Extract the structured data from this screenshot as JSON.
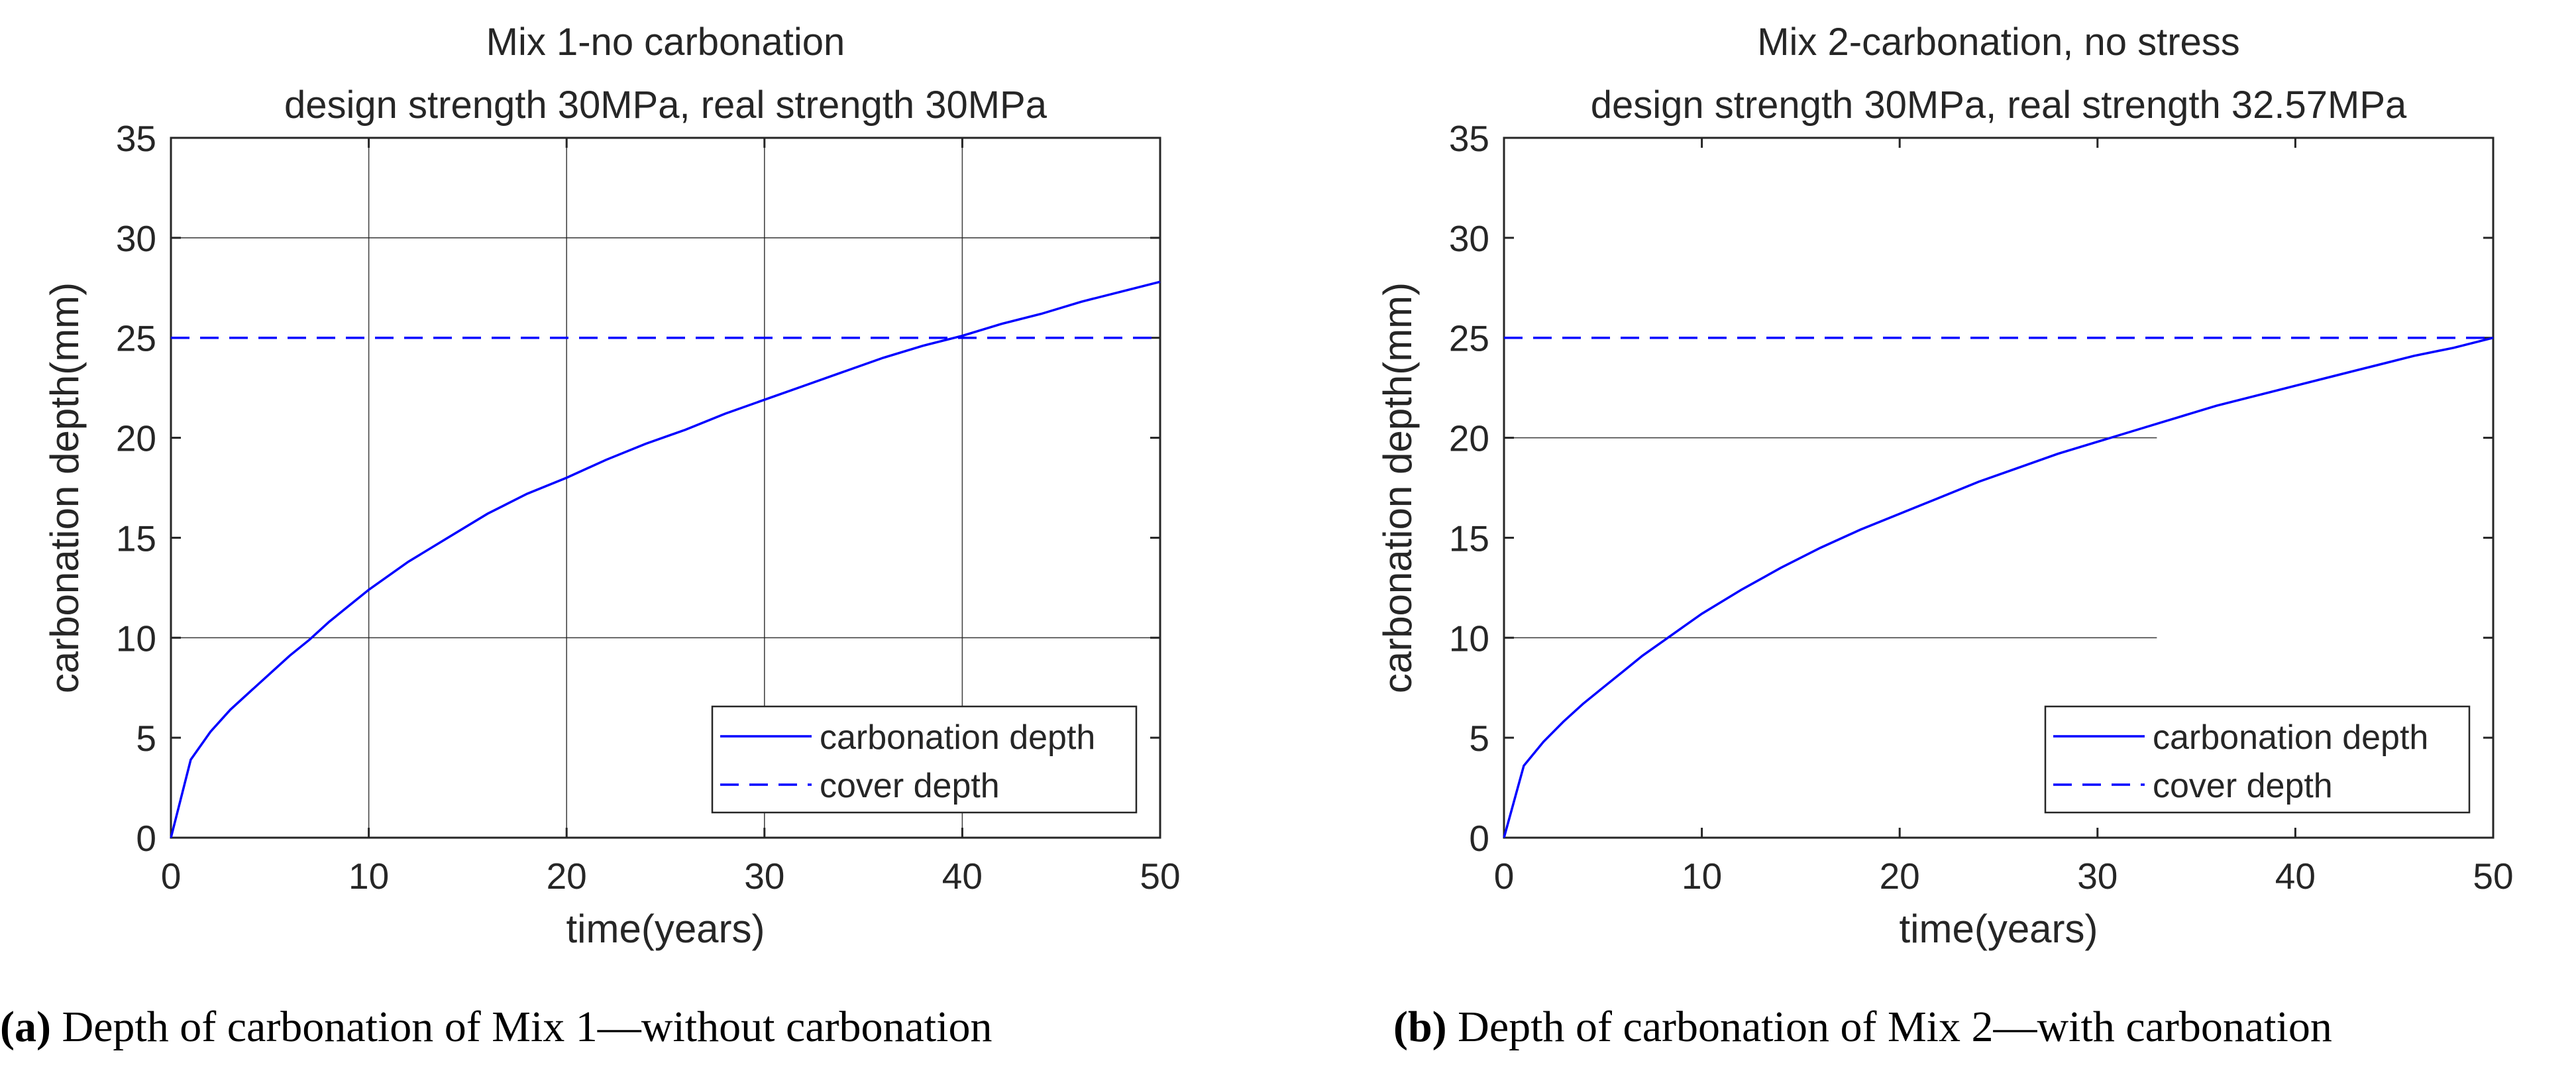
{
  "colors": {
    "series": "#0000ff",
    "axis": "#262626",
    "grid": "#262626",
    "background": "#ffffff"
  },
  "chart_data": [
    {
      "type": "line",
      "title": [
        "Mix 1-no carbonation",
        "design strength 30MPa, real strength 30MPa"
      ],
      "xlabel": "time(years)",
      "ylabel": "carbonation depth(mm)",
      "xlim": [
        0,
        50
      ],
      "ylim": [
        0,
        35
      ],
      "xticks": [
        0,
        10,
        20,
        30,
        40,
        50
      ],
      "yticks": [
        0,
        5,
        10,
        15,
        20,
        25,
        30,
        35
      ],
      "grid": "on",
      "legend_position": "bottom-right",
      "series": [
        {
          "name": "carbonation depth",
          "style": "solid",
          "x": [
            0,
            1,
            2,
            3,
            4,
            5,
            6,
            7,
            8,
            9,
            10,
            12,
            14,
            16,
            18,
            20,
            22,
            24,
            26,
            28,
            30,
            32,
            34,
            36,
            38,
            40,
            42,
            44,
            46,
            48,
            50
          ],
          "y": [
            0,
            3.9,
            5.3,
            6.4,
            7.3,
            8.2,
            9.1,
            9.9,
            10.8,
            11.6,
            12.4,
            13.8,
            15.0,
            16.2,
            17.2,
            18.0,
            18.9,
            19.7,
            20.4,
            21.2,
            21.9,
            22.6,
            23.3,
            24.0,
            24.6,
            25.1,
            25.7,
            26.2,
            26.8,
            27.3,
            27.8
          ]
        },
        {
          "name": "cover depth",
          "style": "dashed",
          "x": [
            0,
            50
          ],
          "y": [
            25,
            25
          ]
        }
      ]
    },
    {
      "type": "line",
      "title": [
        "Mix 2-carbonation, no stress",
        "design strength 30MPa, real strength 32.57MPa"
      ],
      "xlabel": "time(years)",
      "ylabel": "carbonation depth(mm)",
      "xlim": [
        0,
        50
      ],
      "ylim": [
        0,
        35
      ],
      "xticks": [
        0,
        10,
        20,
        30,
        40,
        50
      ],
      "yticks": [
        0,
        5,
        10,
        15,
        20,
        25,
        30,
        35
      ],
      "grid": "partial",
      "legend_position": "bottom-right",
      "series": [
        {
          "name": "carbonation depth",
          "style": "solid",
          "x": [
            0,
            1,
            2,
            3,
            4,
            5,
            6,
            7,
            8,
            9,
            10,
            12,
            14,
            16,
            18,
            20,
            22,
            24,
            26,
            28,
            30,
            32,
            34,
            36,
            38,
            40,
            42,
            44,
            46,
            48,
            50
          ],
          "y": [
            0,
            3.6,
            4.8,
            5.8,
            6.7,
            7.5,
            8.3,
            9.1,
            9.8,
            10.5,
            11.2,
            12.4,
            13.5,
            14.5,
            15.4,
            16.2,
            17.0,
            17.8,
            18.5,
            19.2,
            19.8,
            20.4,
            21.0,
            21.6,
            22.1,
            22.6,
            23.1,
            23.6,
            24.1,
            24.5,
            25.0
          ]
        },
        {
          "name": "cover depth",
          "style": "dashed",
          "x": [
            0,
            50
          ],
          "y": [
            25,
            25
          ]
        }
      ]
    }
  ],
  "captions": [
    {
      "label": "(a)",
      "text": " Depth of carbonation of Mix 1—without carbonation"
    },
    {
      "label": "(b)",
      "text": " Depth of carbonation of Mix 2—with carbonation"
    }
  ]
}
